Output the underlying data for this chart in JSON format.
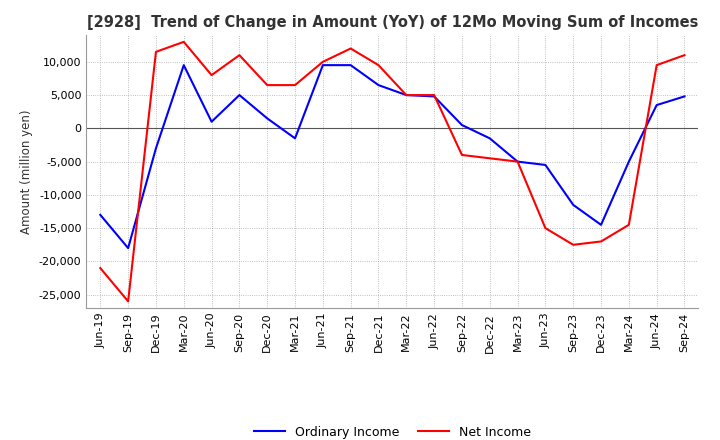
{
  "title": "[2928]  Trend of Change in Amount (YoY) of 12Mo Moving Sum of Incomes",
  "ylabel": "Amount (million yen)",
  "ylim": [
    -27000,
    14000
  ],
  "yticks": [
    10000,
    5000,
    0,
    -5000,
    -10000,
    -15000,
    -20000,
    -25000
  ],
  "x_labels": [
    "Jun-19",
    "Sep-19",
    "Dec-19",
    "Mar-20",
    "Jun-20",
    "Sep-20",
    "Dec-20",
    "Mar-21",
    "Jun-21",
    "Sep-21",
    "Dec-21",
    "Mar-22",
    "Jun-22",
    "Sep-22",
    "Dec-22",
    "Mar-23",
    "Jun-23",
    "Sep-23",
    "Dec-23",
    "Mar-24",
    "Jun-24",
    "Sep-24"
  ],
  "ordinary_income": [
    -13000,
    -18000,
    -3000,
    9500,
    1000,
    5000,
    1500,
    -1500,
    9500,
    9500,
    6500,
    5000,
    4800,
    500,
    -1500,
    -5000,
    -5500,
    -11500,
    -14500,
    -5000,
    3500,
    4800
  ],
  "net_income": [
    -21000,
    -26000,
    11500,
    13000,
    8000,
    11000,
    6500,
    6500,
    10000,
    12000,
    9500,
    5000,
    5000,
    -4000,
    -4500,
    -5000,
    -15000,
    -17500,
    -17000,
    -14500,
    9500,
    11000
  ],
  "ordinary_color": "#0000ff",
  "net_color": "#ff0000",
  "line_width": 1.5,
  "grid_color": "#aaaaaa",
  "background_color": "#ffffff",
  "legend_ordinary": "Ordinary Income",
  "legend_net": "Net Income",
  "title_fontsize": 10.5,
  "tick_fontsize": 8,
  "ylabel_fontsize": 8.5
}
